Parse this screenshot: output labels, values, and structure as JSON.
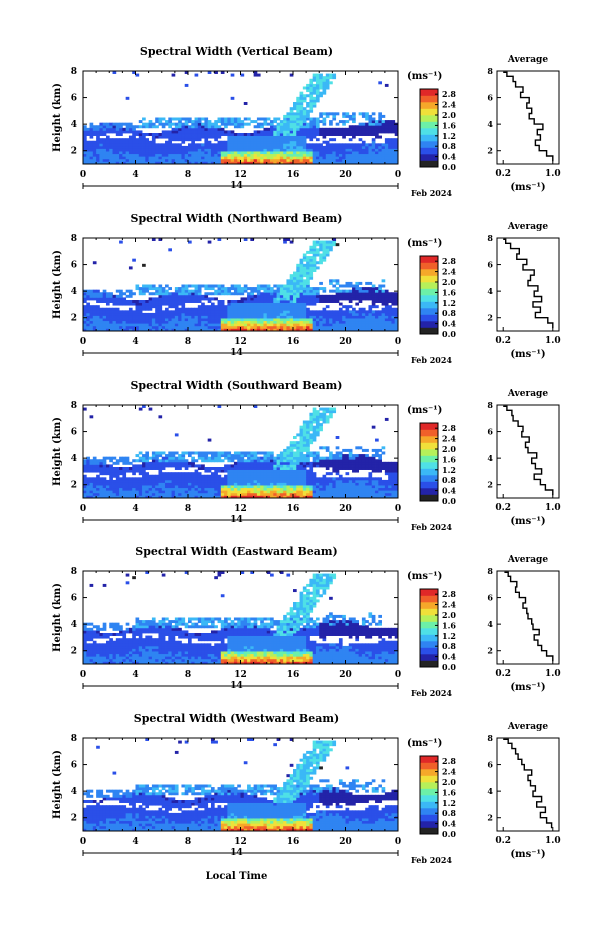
{
  "figure": {
    "date_label": "Feb 2024",
    "xlabel": "Local Time",
    "day_label": "14"
  },
  "colorbar": {
    "unit_label": "(ms⁻¹)",
    "ticks": [
      "0.0",
      "0.4",
      "0.8",
      "1.2",
      "1.6",
      "2.0",
      "2.4",
      "2.8"
    ],
    "colors": [
      "#232323",
      "#2323a8",
      "#2a4fe8",
      "#2f84f2",
      "#3bb8f6",
      "#4fe0e6",
      "#6cf0a8",
      "#b6f05a",
      "#f0e03a",
      "#f5a82a",
      "#f0602a",
      "#e02828"
    ]
  },
  "chart_data": [
    {
      "type": "heatmap",
      "title": "Spectral Width (Vertical Beam)",
      "xlabel": "",
      "ylabel": "Height (km)",
      "xlim": [
        0,
        24
      ],
      "ylim": [
        1,
        8
      ],
      "xticks": [
        "0",
        "4",
        "8",
        "12",
        "16",
        "20",
        "0"
      ],
      "yticks": [
        "2",
        "4",
        "6",
        "8"
      ],
      "clim": [
        0,
        3
      ],
      "avg_title": "Average",
      "avg_xlabel": "(ms⁻¹)",
      "avg_xticks": [
        "0.2",
        "1.0"
      ],
      "avg_xlim": [
        0.1,
        1.1
      ],
      "avg_ylim": [
        1,
        8
      ],
      "avg_profile": {
        "height": [
          1.2,
          1.6,
          2.0,
          2.4,
          2.8,
          3.2,
          3.6,
          4.0,
          4.4,
          4.8,
          5.2,
          5.6,
          6.0,
          6.4,
          6.8,
          7.2,
          7.6,
          7.9
        ],
        "value": [
          1.0,
          0.9,
          0.78,
          0.72,
          0.8,
          0.75,
          0.84,
          0.7,
          0.62,
          0.66,
          0.58,
          0.62,
          0.48,
          0.52,
          0.4,
          0.36,
          0.26,
          0.2
        ]
      }
    },
    {
      "type": "heatmap",
      "title": "Spectral Width (Northward Beam)",
      "xlabel": "",
      "ylabel": "Height (km)",
      "xlim": [
        0,
        24
      ],
      "ylim": [
        1,
        8
      ],
      "xticks": [
        "0",
        "4",
        "8",
        "12",
        "16",
        "20",
        "0"
      ],
      "yticks": [
        "2",
        "4",
        "6",
        "8"
      ],
      "clim": [
        0,
        3
      ],
      "avg_title": "Average",
      "avg_xlabel": "(ms⁻¹)",
      "avg_xticks": [
        "0.2",
        "1.0"
      ],
      "avg_xlim": [
        0.1,
        1.1
      ],
      "avg_ylim": [
        1,
        8
      ],
      "avg_profile": {
        "height": [
          1.2,
          1.6,
          2.0,
          2.4,
          2.8,
          3.2,
          3.6,
          4.0,
          4.4,
          4.8,
          5.2,
          5.6,
          6.0,
          6.4,
          6.8,
          7.2,
          7.6,
          7.9
        ],
        "value": [
          1.0,
          0.92,
          0.72,
          0.8,
          0.68,
          0.82,
          0.7,
          0.76,
          0.6,
          0.64,
          0.7,
          0.52,
          0.58,
          0.42,
          0.46,
          0.32,
          0.24,
          0.2
        ]
      }
    },
    {
      "type": "heatmap",
      "title": "Spectral Width (Southward Beam)",
      "xlabel": "",
      "ylabel": "Height (km)",
      "xlim": [
        0,
        24
      ],
      "ylim": [
        1,
        8
      ],
      "xticks": [
        "0",
        "4",
        "8",
        "12",
        "16",
        "20",
        "0"
      ],
      "yticks": [
        "2",
        "4",
        "6",
        "8"
      ],
      "clim": [
        0,
        3
      ],
      "avg_title": "Average",
      "avg_xlabel": "(ms⁻¹)",
      "avg_xticks": [
        "0.2",
        "1.0"
      ],
      "avg_xlim": [
        0.1,
        1.1
      ],
      "avg_ylim": [
        1,
        8
      ],
      "avg_profile": {
        "height": [
          1.2,
          1.6,
          2.0,
          2.4,
          2.8,
          3.2,
          3.6,
          4.0,
          4.4,
          4.8,
          5.2,
          5.6,
          6.0,
          6.4,
          6.8,
          7.2,
          7.6,
          7.9
        ],
        "value": [
          1.0,
          0.88,
          0.8,
          0.7,
          0.82,
          0.72,
          0.66,
          0.74,
          0.6,
          0.56,
          0.62,
          0.5,
          0.52,
          0.44,
          0.36,
          0.34,
          0.26,
          0.2
        ]
      }
    },
    {
      "type": "heatmap",
      "title": "Spectral Width (Eastward Beam)",
      "xlabel": "",
      "ylabel": "Height (km)",
      "xlim": [
        0,
        24
      ],
      "ylim": [
        1,
        8
      ],
      "xticks": [
        "0",
        "4",
        "8",
        "12",
        "16",
        "20",
        "0"
      ],
      "yticks": [
        "2",
        "4",
        "6",
        "8"
      ],
      "clim": [
        0,
        3
      ],
      "avg_title": "Average",
      "avg_xlabel": "(ms⁻¹)",
      "avg_xticks": [
        "0.2",
        "1.0"
      ],
      "avg_xlim": [
        0.1,
        1.1
      ],
      "avg_ylim": [
        1,
        8
      ],
      "avg_profile": {
        "height": [
          1.2,
          1.6,
          2.0,
          2.4,
          2.8,
          3.2,
          3.6,
          4.0,
          4.4,
          4.8,
          5.2,
          5.6,
          6.0,
          6.4,
          6.8,
          7.2,
          7.6,
          7.9
        ],
        "value": [
          1.0,
          0.9,
          0.82,
          0.76,
          0.7,
          0.78,
          0.68,
          0.66,
          0.6,
          0.58,
          0.52,
          0.56,
          0.46,
          0.4,
          0.42,
          0.32,
          0.28,
          0.22
        ]
      }
    },
    {
      "type": "heatmap",
      "title": "Spectral Width (Westward Beam)",
      "xlabel": "Local Time",
      "ylabel": "Height (km)",
      "xlim": [
        0,
        24
      ],
      "ylim": [
        1,
        8
      ],
      "xticks": [
        "0",
        "4",
        "8",
        "12",
        "16",
        "20",
        "0"
      ],
      "yticks": [
        "2",
        "4",
        "6",
        "8"
      ],
      "clim": [
        0,
        3
      ],
      "avg_title": "Average",
      "avg_xlabel": "(ms⁻¹)",
      "avg_xticks": [
        "0.2",
        "1.0"
      ],
      "avg_xlim": [
        0.1,
        1.1
      ],
      "avg_ylim": [
        1,
        8
      ],
      "avg_profile": {
        "height": [
          1.2,
          1.6,
          2.0,
          2.4,
          2.8,
          3.2,
          3.6,
          4.0,
          4.4,
          4.8,
          5.2,
          5.6,
          6.0,
          6.4,
          6.8,
          7.2,
          7.6,
          7.9
        ],
        "value": [
          0.98,
          0.9,
          0.8,
          0.88,
          0.74,
          0.82,
          0.68,
          0.72,
          0.64,
          0.6,
          0.66,
          0.54,
          0.5,
          0.44,
          0.4,
          0.34,
          0.28,
          0.2
        ]
      }
    }
  ]
}
